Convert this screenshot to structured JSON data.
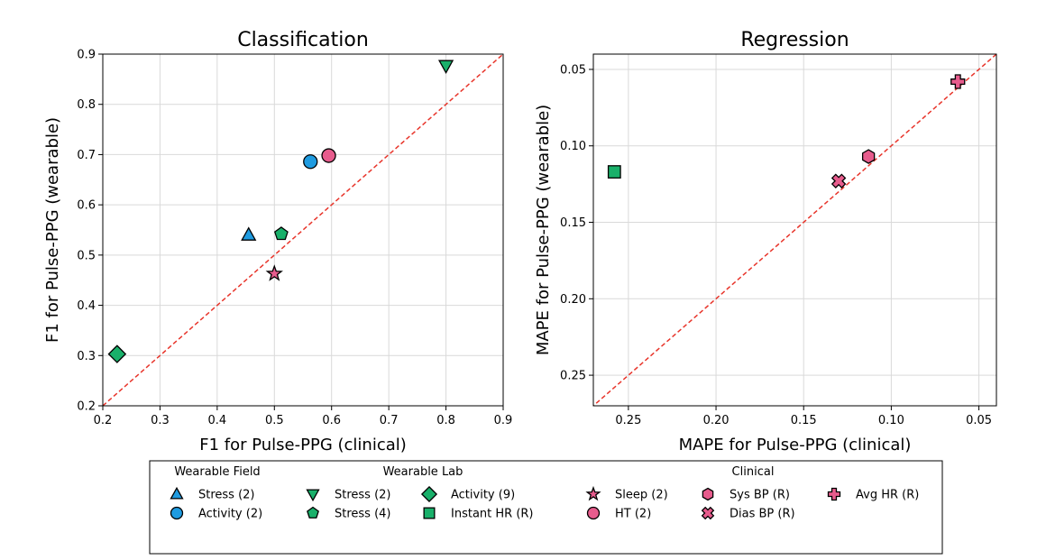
{
  "chart_data": [
    {
      "type": "scatter",
      "title": "Classification",
      "xlabel": "F1 for Pulse-PPG (clinical)",
      "ylabel": "F1 for Pulse-PPG (wearable)",
      "xlim": [
        0.2,
        0.9
      ],
      "ylim": [
        0.2,
        0.9
      ],
      "x_ticks": [
        "0.2",
        "0.3",
        "0.4",
        "0.5",
        "0.6",
        "0.7",
        "0.8",
        "0.9"
      ],
      "y_ticks": [
        "0.2",
        "0.3",
        "0.4",
        "0.5",
        "0.6",
        "0.7",
        "0.8",
        "0.9"
      ],
      "grid": true,
      "diagonal": "y = x (red dashed)",
      "points": [
        {
          "series": "Stress (2)",
          "group": "Wearable Field",
          "marker": "triangle-up",
          "color": "#1f9be0",
          "x": 0.455,
          "y": 0.54
        },
        {
          "series": "Activity (2)",
          "group": "Wearable Field",
          "marker": "circle",
          "color": "#1f9be0",
          "x": 0.563,
          "y": 0.686
        },
        {
          "series": "Stress (2)",
          "group": "Wearable Lab",
          "marker": "triangle-down",
          "color": "#19b06a",
          "x": 0.8,
          "y": 0.877
        },
        {
          "series": "Stress (4)",
          "group": "Wearable Lab",
          "marker": "pentagon",
          "color": "#19b06a",
          "x": 0.512,
          "y": 0.542
        },
        {
          "series": "Activity (9)",
          "group": "Wearable Lab",
          "marker": "diamond",
          "color": "#19b06a",
          "x": 0.225,
          "y": 0.303
        },
        {
          "series": "Sleep (2)",
          "group": "Clinical",
          "marker": "star",
          "color": "#e75c8d",
          "x": 0.5,
          "y": 0.463
        },
        {
          "series": "HT (2)",
          "group": "Clinical",
          "marker": "circle",
          "color": "#e75c8d",
          "x": 0.595,
          "y": 0.698
        }
      ]
    },
    {
      "type": "scatter",
      "title": "Regression",
      "xlabel": "MAPE for Pulse-PPG (clinical)",
      "ylabel": "MAPE for Pulse-PPG (wearable)",
      "xlim": [
        0.27,
        0.04
      ],
      "ylim": [
        0.27,
        0.04
      ],
      "x_ticks": [
        "0.25",
        "0.20",
        "0.15",
        "0.10",
        "0.05"
      ],
      "y_ticks": [
        "0.05",
        "0.10",
        "0.15",
        "0.20",
        "0.25"
      ],
      "inverted_axes": true,
      "grid": true,
      "diagonal": "y = x (red dashed)",
      "points": [
        {
          "series": "Instant HR (R)",
          "group": "Wearable Lab",
          "marker": "square",
          "color": "#19b06a",
          "x": 0.258,
          "y": 0.117
        },
        {
          "series": "Sys BP (R)",
          "group": "Clinical",
          "marker": "hexagon",
          "color": "#e75c8d",
          "x": 0.113,
          "y": 0.107
        },
        {
          "series": "Dias BP (R)",
          "group": "Clinical",
          "marker": "x-cross",
          "color": "#e75c8d",
          "x": 0.13,
          "y": 0.123
        },
        {
          "series": "Avg HR (R)",
          "group": "Clinical",
          "marker": "plus",
          "color": "#e75c8d",
          "x": 0.062,
          "y": 0.058
        }
      ]
    }
  ],
  "legend": {
    "groups": [
      {
        "title": "Wearable Field"
      },
      {
        "title": "Wearable Lab"
      },
      {
        "title": "Clinical"
      }
    ],
    "entries": [
      {
        "label": "Stress (2)",
        "marker": "triangle-up",
        "color": "#1f9be0"
      },
      {
        "label": "Activity (2)",
        "marker": "circle",
        "color": "#1f9be0"
      },
      {
        "label": "Stress (2)",
        "marker": "triangle-down",
        "color": "#19b06a"
      },
      {
        "label": "Stress (4)",
        "marker": "pentagon",
        "color": "#19b06a"
      },
      {
        "label": "Activity (9)",
        "marker": "diamond",
        "color": "#19b06a"
      },
      {
        "label": "Instant HR (R)",
        "marker": "square",
        "color": "#19b06a"
      },
      {
        "label": "Sleep (2)",
        "marker": "star",
        "color": "#e75c8d"
      },
      {
        "label": "HT (2)",
        "marker": "circle",
        "color": "#e75c8d"
      },
      {
        "label": "Sys BP (R)",
        "marker": "hexagon",
        "color": "#e75c8d"
      },
      {
        "label": "Dias BP (R)",
        "marker": "x-cross",
        "color": "#e75c8d"
      },
      {
        "label": "Avg HR (R)",
        "marker": "plus",
        "color": "#e75c8d"
      }
    ]
  },
  "colors": {
    "wearable_field": "#1f9be0",
    "wearable_lab": "#19b06a",
    "clinical": "#e75c8d",
    "diagonal": "#e8352b",
    "grid": "#d9d9d9"
  }
}
